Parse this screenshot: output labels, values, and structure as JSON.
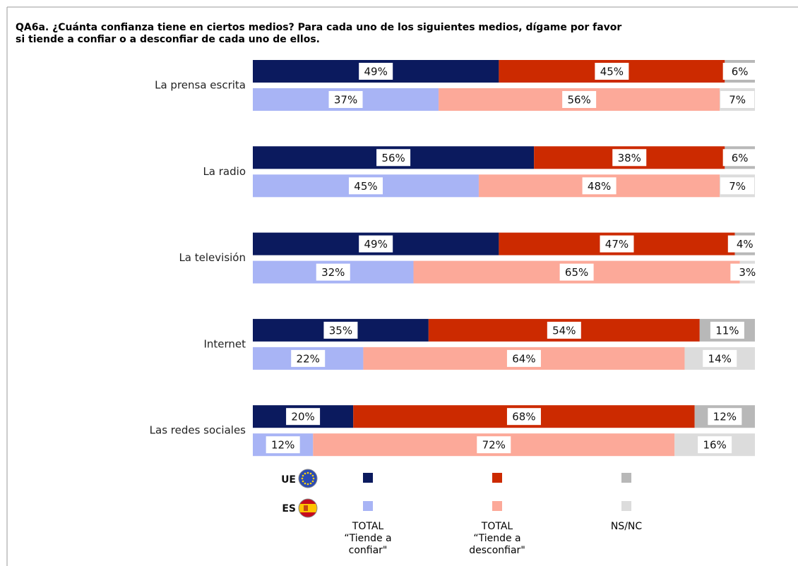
{
  "chart_data": {
    "type": "bar",
    "title": "QA6a. ¿Cuánta confianza tiene en ciertos medios? Para cada uno de los siguientes medios, dígame por favor\nsi tiende a confiar o a desconfiar de cada uno de ellos.",
    "categories": [
      "La prensa escrita",
      "La radio",
      "La televisión",
      "Internet",
      "Las redes sociales"
    ],
    "groups": [
      "UE",
      "ES"
    ],
    "xlim": [
      0,
      100
    ],
    "series": [
      {
        "name": "TOTAL\n“Tiende a\nconfiar\"",
        "colors": [
          "#0b1a5e",
          "#a8b4f5"
        ],
        "values": [
          [
            49,
            37
          ],
          [
            56,
            45
          ],
          [
            49,
            32
          ],
          [
            35,
            22
          ],
          [
            20,
            12
          ]
        ],
        "value_labels": [
          [
            "49%",
            "37%"
          ],
          [
            "56%",
            "45%"
          ],
          [
            "49%",
            "32%"
          ],
          [
            "35%",
            "22%"
          ],
          [
            "20%",
            "12%"
          ]
        ]
      },
      {
        "name": "TOTAL\n“Tiende a\ndesconfiar\"",
        "colors": [
          "#cc2a00",
          "#fca999"
        ],
        "values": [
          [
            45,
            56
          ],
          [
            38,
            48
          ],
          [
            47,
            65
          ],
          [
            54,
            64
          ],
          [
            68,
            72
          ]
        ],
        "value_labels": [
          [
            "45%",
            "56%"
          ],
          [
            "38%",
            "48%"
          ],
          [
            "47%",
            "65%"
          ],
          [
            "54%",
            "64%"
          ],
          [
            "68%",
            "72%"
          ]
        ]
      },
      {
        "name": "NS/NC",
        "colors": [
          "#b8b8b8",
          "#dcdcdc"
        ],
        "values": [
          [
            6,
            7
          ],
          [
            6,
            7
          ],
          [
            4,
            3
          ],
          [
            11,
            14
          ],
          [
            12,
            16
          ]
        ],
        "value_labels": [
          [
            "6%",
            "7%"
          ],
          [
            "6%",
            "7%"
          ],
          [
            "4%",
            "3%"
          ],
          [
            "11%",
            "14%"
          ],
          [
            "12%",
            "16%"
          ]
        ]
      }
    ]
  }
}
